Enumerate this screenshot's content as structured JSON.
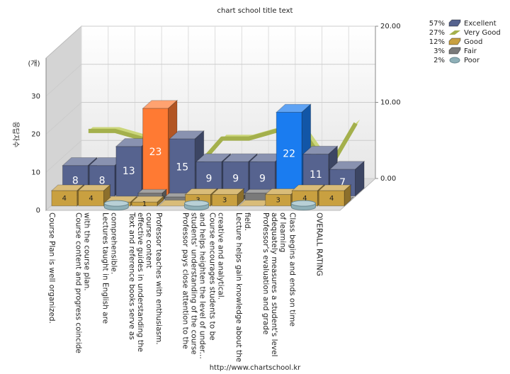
{
  "chart_data": {
    "type": "bar3d",
    "title": "chart school title text",
    "y_axis_label": "(개)",
    "y_axis_title": "응답자수",
    "footer": "http://www.chartschool.kr",
    "categories": [
      "Course Plan is well organized.",
      "Course content and progress coincide with the course plan.",
      "Lectures taught in English are comprehensible.",
      "Text and reference books serve as effective guides in understanding the course content",
      "Professor teaches with enthusiasm.",
      "Professor pays close attention to the students' understanding of the course and helps heighten the level of under...",
      "Course encourages students to be creative and analytical.",
      "Lecture helps gain knowledge about the field.",
      "Professor's evaluation and grade adequately measures a student's level of learning",
      "Class begins and ends on time",
      "OVERALL RATING"
    ],
    "ylim": [
      0,
      40
    ],
    "yticks": [
      0,
      10,
      20,
      30
    ],
    "y2lim": [
      0,
      20
    ],
    "y2ticks": [
      {
        "value": 0,
        "label": "0.00"
      },
      {
        "value": 10,
        "label": "10.00"
      },
      {
        "value": 20,
        "label": "20.00"
      }
    ],
    "series": [
      {
        "name": "Excellent",
        "kind": "bar",
        "share": 57,
        "share_label": "57%",
        "color": "#56638f",
        "highlight": [
          {
            "index": 3,
            "color": "#ff7a33"
          },
          {
            "index": 8,
            "color": "#1a7cf0"
          }
        ],
        "values": [
          8,
          8,
          13,
          23,
          15,
          9,
          9,
          9,
          22,
          11,
          7
        ]
      },
      {
        "name": "Very Good",
        "kind": "line",
        "axis": "y2",
        "share": 27,
        "share_label": "27%",
        "color": "#a4b04c",
        "values": [
          7,
          7,
          6,
          4,
          2,
          6,
          6,
          7,
          7,
          2,
          8
        ]
      },
      {
        "name": "Good",
        "kind": "bar",
        "share": 12,
        "share_label": "12%",
        "color": "#c9a040",
        "values": [
          4,
          4,
          1,
          1,
          0,
          3,
          3,
          0,
          3,
          4,
          4
        ]
      },
      {
        "name": "Fair",
        "kind": "bar",
        "share": 3,
        "share_label": "3%",
        "color": "#7a7a7a",
        "values": [
          0,
          0,
          0,
          2,
          1,
          0,
          1,
          2,
          0,
          0,
          0
        ]
      },
      {
        "name": "Poor",
        "kind": "cylinder",
        "share": 2,
        "share_label": "2%",
        "color": "#8fb0b8",
        "values": [
          0,
          0,
          1,
          0,
          0,
          1,
          0,
          0,
          0,
          1,
          0
        ]
      }
    ]
  }
}
